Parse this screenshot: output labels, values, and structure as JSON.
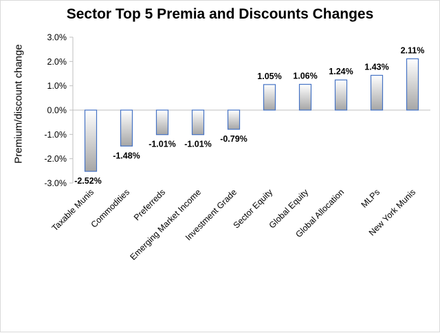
{
  "chart_data": {
    "type": "bar",
    "title": "Sector Top 5 Premia and Discounts Changes",
    "ylabel": "Premium/discount change",
    "ylim": [
      -3.0,
      3.0
    ],
    "yticks": [
      "3.0%",
      "2.0%",
      "1.0%",
      "0.0%",
      "-1.0%",
      "-2.0%",
      "-3.0%"
    ],
    "ytick_values": [
      3,
      2,
      1,
      0,
      -1,
      -2,
      -3
    ],
    "grid": false,
    "categories": [
      "Taxable Munis",
      "Commodities",
      "Preferreds",
      "Emerging Market Income",
      "Investment Grade",
      "Sector Equity",
      "Global Equity",
      "Global Allocation",
      "MLPs",
      "New York Munis"
    ],
    "values": [
      -2.52,
      -1.48,
      -1.01,
      -1.01,
      -0.79,
      1.05,
      1.06,
      1.24,
      1.43,
      2.11
    ],
    "data_labels": [
      "-2.52%",
      "-1.48%",
      "-1.01%",
      "-1.01%",
      "-0.79%",
      "1.05%",
      "1.06%",
      "1.24%",
      "1.43%",
      "2.11%"
    ],
    "colors": {
      "bar_border": "#4472c4",
      "bar_fill_dark": "#a6a6a6",
      "bar_fill_light": "#ffffff",
      "axis": "#bfbfbf"
    }
  }
}
